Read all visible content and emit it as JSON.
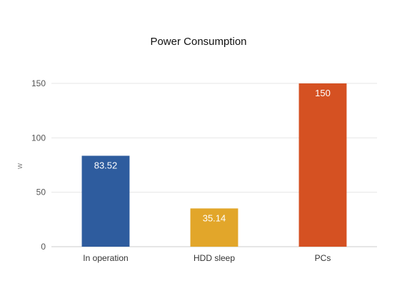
{
  "chart_data": {
    "type": "bar",
    "title": "Power Consumption",
    "ylabel": "w",
    "xlabel": "",
    "categories": [
      "In operation",
      "HDD sleep",
      "PCs"
    ],
    "values": [
      83.52,
      35.14,
      150
    ],
    "value_labels": [
      "83.52",
      "35.14",
      "150"
    ],
    "bar_colors": [
      "#2e5c9e",
      "#e2a62a",
      "#d55122"
    ],
    "ylim": [
      0,
      150
    ],
    "yticks": [
      0,
      50,
      100,
      150
    ],
    "grid": true,
    "legend": "none"
  }
}
